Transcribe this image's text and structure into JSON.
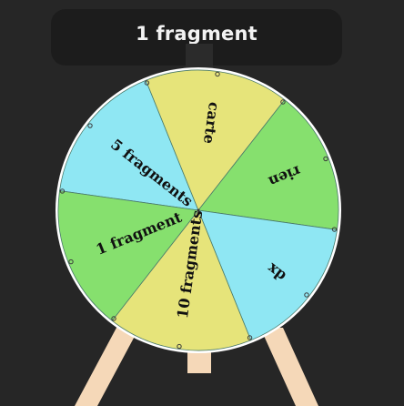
{
  "result": {
    "text": "1 fragment"
  },
  "wheel": {
    "segments": [
      {
        "label": "5 fragments",
        "color": "#8fe7f3"
      },
      {
        "label": "carte",
        "color": "#e6e47a"
      },
      {
        "label": "rien",
        "color": "#86e06e"
      },
      {
        "label": "dx",
        "color": "#8fe7f3"
      },
      {
        "label": "10 fragments",
        "color": "#e6e47a"
      },
      {
        "label": "1 fragment",
        "color": "#86e06e"
      }
    ],
    "rim_color": "#ffffff",
    "stand_color": "#f5d8b8"
  }
}
